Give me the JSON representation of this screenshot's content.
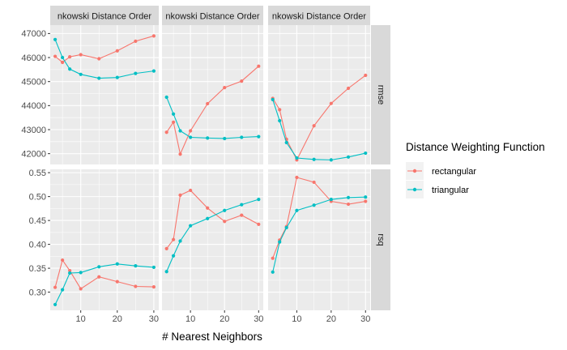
{
  "chart_data": {
    "type": "line",
    "xlabel": "# Nearest Neighbors",
    "facet_column_label": "nkowski Distance Order",
    "x_ticks": [
      10,
      20,
      30
    ],
    "panel_columns": 3,
    "rows": [
      {
        "metric": "rmse",
        "ylim": [
          41550,
          47350
        ],
        "y_ticks": [
          42000,
          43000,
          44000,
          45000,
          46000,
          47000
        ],
        "y_tick_labels": [
          "42000",
          "43000",
          "44000",
          "45000",
          "46000",
          "47000"
        ]
      },
      {
        "metric": "rsq",
        "ylim": [
          0.262,
          0.557
        ],
        "y_ticks": [
          0.3,
          0.35,
          0.4,
          0.45,
          0.5,
          0.55
        ],
        "y_tick_labels": [
          "0.30",
          "0.35",
          "0.40",
          "0.45",
          "0.50",
          "0.55"
        ]
      }
    ],
    "x": [
      3,
      5,
      7,
      10,
      15,
      20,
      25,
      30
    ],
    "panels": [
      {
        "metric": "rmse",
        "column": 1,
        "series": [
          {
            "name": "rectangular",
            "values": [
              46050,
              45800,
              46030,
              46120,
              45950,
              46280,
              46680,
              46900
            ]
          },
          {
            "name": "triangular",
            "values": [
              46750,
              46000,
              45520,
              45300,
              45140,
              45170,
              45340,
              45440
            ]
          }
        ]
      },
      {
        "metric": "rmse",
        "column": 2,
        "series": [
          {
            "name": "rectangular",
            "values": [
              42890,
              43310,
              41980,
              42950,
              44080,
              44750,
              45020,
              45640
            ]
          },
          {
            "name": "triangular",
            "values": [
              44350,
              43650,
              42950,
              42680,
              42650,
              42630,
              42680,
              42710
            ]
          }
        ]
      },
      {
        "metric": "rmse",
        "column": 3,
        "series": [
          {
            "name": "rectangular",
            "values": [
              44300,
              43830,
              42600,
              41740,
              43160,
              44090,
              44720,
              45260
            ]
          },
          {
            "name": "triangular",
            "values": [
              44250,
              43370,
              42460,
              41820,
              41760,
              41740,
              41860,
              42020
            ]
          }
        ]
      },
      {
        "metric": "rsq",
        "column": 1,
        "series": [
          {
            "name": "rectangular",
            "values": [
              0.31,
              0.367,
              0.345,
              0.307,
              0.332,
              0.322,
              0.312,
              0.311
            ]
          },
          {
            "name": "triangular",
            "values": [
              0.274,
              0.305,
              0.34,
              0.341,
              0.353,
              0.359,
              0.355,
              0.352
            ]
          }
        ]
      },
      {
        "metric": "rsq",
        "column": 2,
        "series": [
          {
            "name": "rectangular",
            "values": [
              0.391,
              0.41,
              0.503,
              0.513,
              0.476,
              0.448,
              0.461,
              0.442
            ]
          },
          {
            "name": "triangular",
            "values": [
              0.343,
              0.376,
              0.407,
              0.439,
              0.454,
              0.471,
              0.483,
              0.494
            ]
          }
        ]
      },
      {
        "metric": "rsq",
        "column": 3,
        "series": [
          {
            "name": "rectangular",
            "values": [
              0.371,
              0.409,
              0.437,
              0.54,
              0.53,
              0.49,
              0.484,
              0.49
            ]
          },
          {
            "name": "triangular",
            "values": [
              0.342,
              0.405,
              0.435,
              0.471,
              0.482,
              0.494,
              0.498,
              0.499
            ]
          }
        ]
      }
    ],
    "legend": {
      "title": "Distance Weighting Function",
      "placement": "right",
      "entries": [
        {
          "name": "rectangular",
          "color": "#F8766D"
        },
        {
          "name": "triangular",
          "color": "#00BFC4"
        }
      ]
    },
    "panel_background": "#EBEBEB",
    "strip_background": "#D9D9D9",
    "grid": true
  }
}
